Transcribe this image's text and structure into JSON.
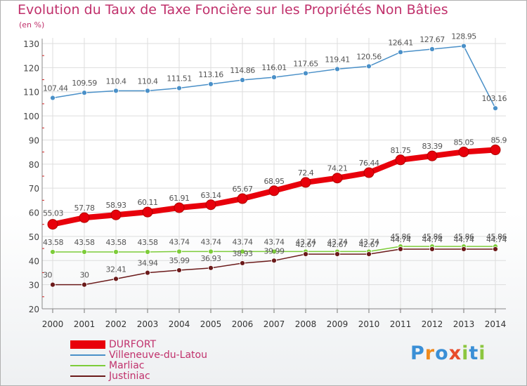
{
  "title": "Evolution du Taux de Taxe Foncière sur les Propriétés Non Bâties",
  "unit_label": "(en %)",
  "logo": {
    "text": "Proxiti",
    "letters": [
      {
        "ch": "P",
        "color": "#3a8fd6"
      },
      {
        "ch": "r",
        "color": "#f08a1c"
      },
      {
        "ch": "o",
        "color": "#3a8fd6"
      },
      {
        "ch": "x",
        "color": "#e84b2a"
      },
      {
        "ch": "i",
        "color": "#8cc63f"
      },
      {
        "ch": "t",
        "color": "#3a8fd6"
      },
      {
        "ch": "i",
        "color": "#8cc63f"
      }
    ]
  },
  "chart_data": {
    "type": "line",
    "title": "Evolution du Taux de Taxe Foncière sur les Propriétés Non Bâties",
    "ylabel": "(en %)",
    "xlabel": "",
    "x": [
      "2000",
      "2001",
      "2002",
      "2003",
      "2004",
      "2005",
      "2006",
      "2007",
      "2008",
      "2009",
      "2010",
      "2011",
      "2012",
      "2013",
      "2014"
    ],
    "ylim": [
      20,
      130
    ],
    "yticks": [
      20,
      30,
      40,
      50,
      60,
      70,
      80,
      90,
      100,
      110,
      120,
      130
    ],
    "grid": true,
    "legend_position": "bottom-left",
    "series": [
      {
        "name": "DURFORT",
        "color": "#e8000b",
        "emphasis": true,
        "values": [
          55.03,
          57.78,
          58.93,
          60.11,
          61.91,
          63.14,
          65.67,
          68.95,
          72.4,
          74.21,
          76.44,
          81.75,
          83.39,
          85.05,
          85.9
        ],
        "labels": [
          "55.03",
          "57.78",
          "58.93",
          "60.11",
          "61.91",
          "63.14",
          "65.67",
          "68.95",
          "72.4",
          "74.21",
          "76.44",
          "81.75",
          "83.39",
          "85.05",
          "85.9"
        ]
      },
      {
        "name": "Villeneuve-du-Latou",
        "color": "#4a90c8",
        "values": [
          107.44,
          109.59,
          110.4,
          110.4,
          111.51,
          113.16,
          114.86,
          116.01,
          117.65,
          119.41,
          120.56,
          126.41,
          127.67,
          128.95,
          103.16
        ],
        "labels": [
          "107.44",
          "109.59",
          "110.4",
          "110.4",
          "111.51",
          "113.16",
          "114.86",
          "116.01",
          "117.65",
          "119.41",
          "120.56",
          "126.41",
          "127.67",
          "128.95",
          "103.16"
        ]
      },
      {
        "name": "Marliac",
        "color": "#7dcc3a",
        "values": [
          43.58,
          43.58,
          43.58,
          43.58,
          43.74,
          43.74,
          43.74,
          43.74,
          43.74,
          43.74,
          43.74,
          45.86,
          45.86,
          45.86,
          45.86
        ],
        "labels": [
          "43.58",
          "43.58",
          "43.58",
          "43.58",
          "43.74",
          "43.74",
          "43.74",
          "43.74",
          "43.74",
          "43.74",
          "43.74",
          "45.86",
          "45.86",
          "45.86",
          "45.86"
        ]
      },
      {
        "name": "Justiniac",
        "color": "#6b1a1a",
        "values": [
          30,
          30,
          32.41,
          34.94,
          35.99,
          36.93,
          38.93,
          39.99,
          42.67,
          42.67,
          42.67,
          44.74,
          44.74,
          44.74,
          44.74
        ],
        "labels": [
          "30",
          "30",
          "32.41",
          "34.94",
          "35.99",
          "36.93",
          "38.93",
          "39.99",
          "42.67",
          "42.67",
          "42.67",
          "44.74",
          "44.74",
          "44.74",
          "44.74"
        ]
      }
    ]
  },
  "legend": [
    {
      "label": "DURFORT",
      "color": "#e8000b"
    },
    {
      "label": "Villeneuve-du-Latou",
      "color": "#4a90c8"
    },
    {
      "label": "Marliac",
      "color": "#7dcc3a"
    },
    {
      "label": "Justiniac",
      "color": "#6b1a1a"
    }
  ]
}
